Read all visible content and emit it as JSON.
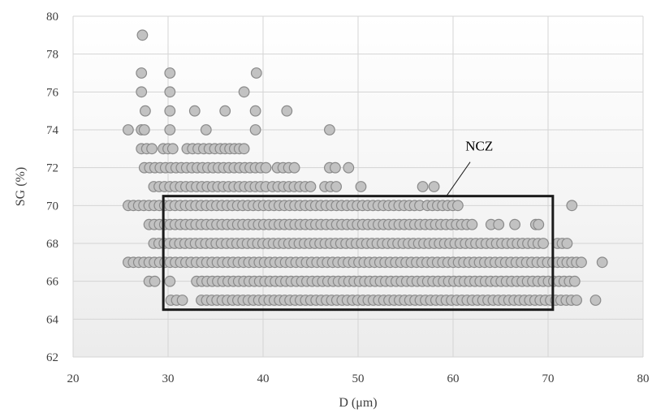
{
  "chart_data": {
    "type": "scatter",
    "xlabel": "D (μm)",
    "ylabel": "SG (%)",
    "xlim": [
      20,
      80
    ],
    "ylim": [
      62,
      80
    ],
    "x_ticks": [
      20,
      30,
      40,
      50,
      60,
      70,
      80
    ],
    "y_ticks": [
      62,
      64,
      66,
      68,
      70,
      72,
      74,
      76,
      78,
      80
    ],
    "grid": "horizontal",
    "legend": "none",
    "annotation": {
      "label": "NCZ",
      "x_range": [
        29.5,
        70.5
      ],
      "y_range": [
        64.5,
        70.5
      ]
    },
    "colors": {
      "marker_fill": "#c2c2c2",
      "marker_edge": "#8a8a8a",
      "box": "#1a1a1a"
    },
    "series": [
      {
        "rows": [
          {
            "y": 79,
            "x_ranges": [
              [
                27.3,
                27.3
              ]
            ]
          },
          {
            "y": 77,
            "x_ranges": [
              [
                27.2,
                27.3
              ],
              [
                30.2,
                30.2
              ],
              [
                39.3,
                39.3
              ]
            ]
          },
          {
            "y": 76,
            "x_ranges": [
              [
                27.2,
                27.3
              ],
              [
                30.2,
                30.2
              ],
              [
                38.0,
                38.0
              ]
            ]
          },
          {
            "y": 75,
            "x_ranges": [
              [
                27.6,
                27.6
              ],
              [
                30.2,
                30.2
              ],
              [
                32.8,
                32.8
              ],
              [
                36.0,
                36.0
              ],
              [
                39.2,
                39.2
              ],
              [
                42.5,
                42.5
              ]
            ]
          },
          {
            "y": 74,
            "x_ranges": [
              [
                25.8,
                26.0
              ],
              [
                27.2,
                27.5
              ],
              [
                30.2,
                30.2
              ],
              [
                34.0,
                34.2
              ],
              [
                39.2,
                39.2
              ],
              [
                47.0,
                47.0
              ]
            ]
          },
          {
            "y": 73,
            "x_ranges": [
              [
                27.2,
                28.3
              ],
              [
                29.5,
                30.5
              ],
              [
                32.0,
                35.5
              ],
              [
                36.0,
                38.0
              ]
            ]
          },
          {
            "y": 72,
            "x_ranges": [
              [
                27.5,
                40.3
              ],
              [
                41.5,
                43.3
              ],
              [
                47.0,
                47.6
              ],
              [
                49.0,
                49.0
              ]
            ]
          },
          {
            "y": 71,
            "x_ranges": [
              [
                28.5,
                40.3
              ],
              [
                41.0,
                45.0
              ],
              [
                46.5,
                47.7
              ],
              [
                50.3,
                50.3
              ],
              [
                56.8,
                56.8
              ],
              [
                58.0,
                58.0
              ]
            ]
          },
          {
            "y": 70,
            "x_ranges": [
              [
                25.8,
                56.5
              ],
              [
                57.3,
                60.5
              ],
              [
                72.5,
                72.5
              ]
            ]
          },
          {
            "y": 69,
            "x_ranges": [
              [
                28.0,
                62.0
              ],
              [
                64.0,
                64.8
              ],
              [
                66.5,
                66.5
              ],
              [
                68.7,
                69.0
              ]
            ]
          },
          {
            "y": 68,
            "x_ranges": [
              [
                28.5,
                69.5
              ],
              [
                71.0,
                72.0
              ]
            ]
          },
          {
            "y": 67,
            "x_ranges": [
              [
                25.8,
                70.5
              ],
              [
                71.0,
                73.5
              ],
              [
                75.7,
                75.7
              ]
            ]
          },
          {
            "y": 66,
            "x_ranges": [
              [
                28.0,
                28.6
              ],
              [
                30.2,
                30.2
              ],
              [
                33.0,
                72.8
              ]
            ]
          },
          {
            "y": 65,
            "x_ranges": [
              [
                30.3,
                31.5
              ],
              [
                33.5,
                73.0
              ],
              [
                75.0,
                75.0
              ]
            ]
          }
        ],
        "x_step": 0.55
      }
    ]
  }
}
